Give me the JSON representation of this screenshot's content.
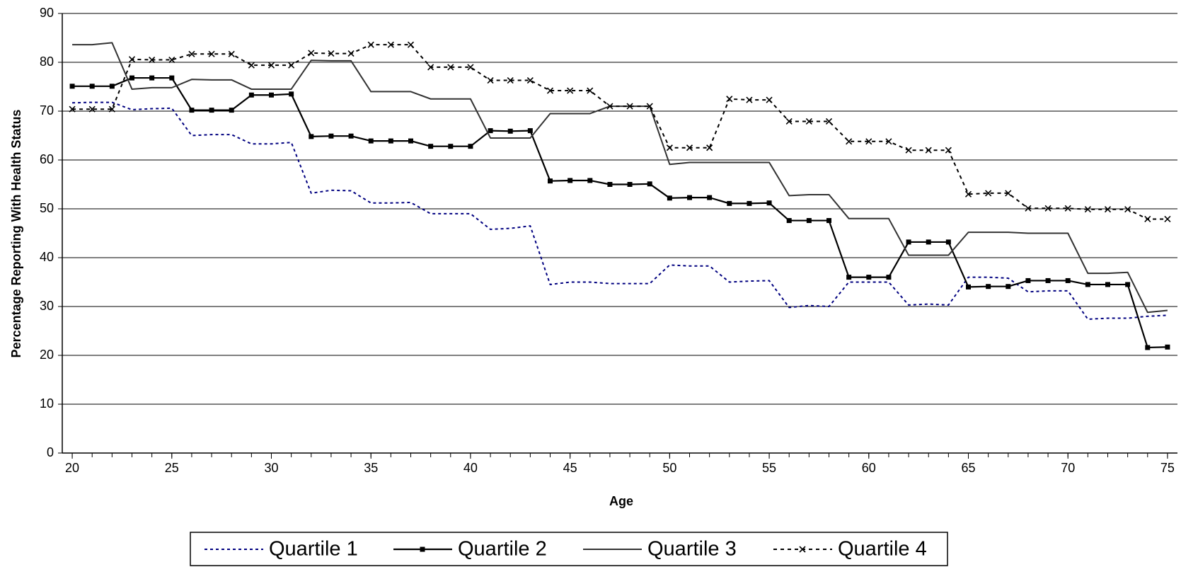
{
  "chart_data": {
    "type": "line",
    "x_label": "Age",
    "y_label": "Percentage Reporting With Health Status",
    "x": [
      20,
      21,
      22,
      23,
      24,
      25,
      26,
      27,
      28,
      29,
      30,
      31,
      32,
      33,
      34,
      35,
      36,
      37,
      38,
      39,
      40,
      41,
      42,
      43,
      44,
      45,
      46,
      47,
      48,
      49,
      50,
      51,
      52,
      53,
      54,
      55,
      56,
      57,
      58,
      59,
      60,
      61,
      62,
      63,
      64,
      65,
      66,
      67,
      68,
      69,
      70,
      71,
      72,
      73,
      74,
      75
    ],
    "xlim": [
      19.5,
      75.5
    ],
    "xticks": [
      20,
      25,
      30,
      35,
      40,
      45,
      50,
      55,
      60,
      65,
      70,
      75
    ],
    "ylim": [
      0,
      90
    ],
    "yticks": [
      0,
      10,
      20,
      30,
      40,
      50,
      60,
      70,
      80,
      90
    ],
    "grid": true,
    "legend": "bottom",
    "series": [
      {
        "name": "Quartile 1",
        "color": "#000080",
        "values": [
          71.7,
          71.8,
          71.8,
          70.3,
          70.5,
          70.6,
          65,
          65.2,
          65.2,
          63.3,
          63.3,
          63.6,
          53.2,
          53.8,
          53.7,
          51.2,
          51.2,
          51.3,
          49,
          49,
          49,
          45.8,
          46,
          46.5,
          34.5,
          35,
          35,
          34.7,
          34.7,
          34.7,
          38.5,
          38.3,
          38.3,
          35,
          35.2,
          35.3,
          29.8,
          30.2,
          30,
          35,
          35,
          35,
          30.3,
          30.5,
          30.3,
          36,
          36,
          35.8,
          33,
          33.2,
          33.2,
          27.4,
          27.6,
          27.6,
          28,
          28.2
        ]
      },
      {
        "name": "Quartile 2",
        "color": "#000000",
        "values": [
          75.1,
          75.1,
          75.1,
          76.8,
          76.8,
          76.8,
          70.2,
          70.2,
          70.2,
          73.3,
          73.3,
          73.5,
          64.8,
          64.9,
          64.9,
          63.9,
          63.9,
          63.9,
          62.8,
          62.8,
          62.8,
          66,
          65.9,
          66,
          55.7,
          55.8,
          55.8,
          55,
          55,
          55.1,
          52.2,
          52.3,
          52.3,
          51.1,
          51.1,
          51.2,
          47.6,
          47.6,
          47.6,
          36,
          36,
          36,
          43.2,
          43.2,
          43.2,
          34,
          34.1,
          34.1,
          35.3,
          35.3,
          35.3,
          34.5,
          34.5,
          34.5,
          21.6,
          21.7
        ]
      },
      {
        "name": "Quartile 3",
        "color": "#333333",
        "values": [
          83.6,
          83.6,
          84,
          74.5,
          74.8,
          74.8,
          76.5,
          76.4,
          76.4,
          74.5,
          74.5,
          74.5,
          80.4,
          80.3,
          80.3,
          74,
          74,
          74,
          72.5,
          72.5,
          72.5,
          64.5,
          64.5,
          64.5,
          69.5,
          69.5,
          69.5,
          71,
          71,
          71,
          59.1,
          59.5,
          59.5,
          59.5,
          59.5,
          59.5,
          52.7,
          52.9,
          52.9,
          48,
          48,
          48,
          40.5,
          40.5,
          40.5,
          45.2,
          45.2,
          45.2,
          45,
          45,
          45,
          36.8,
          36.8,
          37,
          28.8,
          29.2
        ]
      },
      {
        "name": "Quartile 4",
        "color": "#000000",
        "values": [
          70.4,
          70.4,
          70.4,
          80.6,
          80.5,
          80.5,
          81.7,
          81.7,
          81.7,
          79.4,
          79.4,
          79.4,
          81.9,
          81.8,
          81.8,
          83.6,
          83.6,
          83.6,
          79,
          79,
          79,
          76.3,
          76.3,
          76.3,
          74.2,
          74.2,
          74.2,
          71,
          71,
          71,
          62.5,
          62.5,
          62.5,
          72.5,
          72.3,
          72.3,
          67.9,
          67.9,
          67.9,
          63.8,
          63.8,
          63.8,
          62,
          62,
          62,
          53,
          53.2,
          53.2,
          50.1,
          50.1,
          50.1,
          49.9,
          49.9,
          49.9,
          47.9,
          47.9
        ]
      }
    ]
  }
}
